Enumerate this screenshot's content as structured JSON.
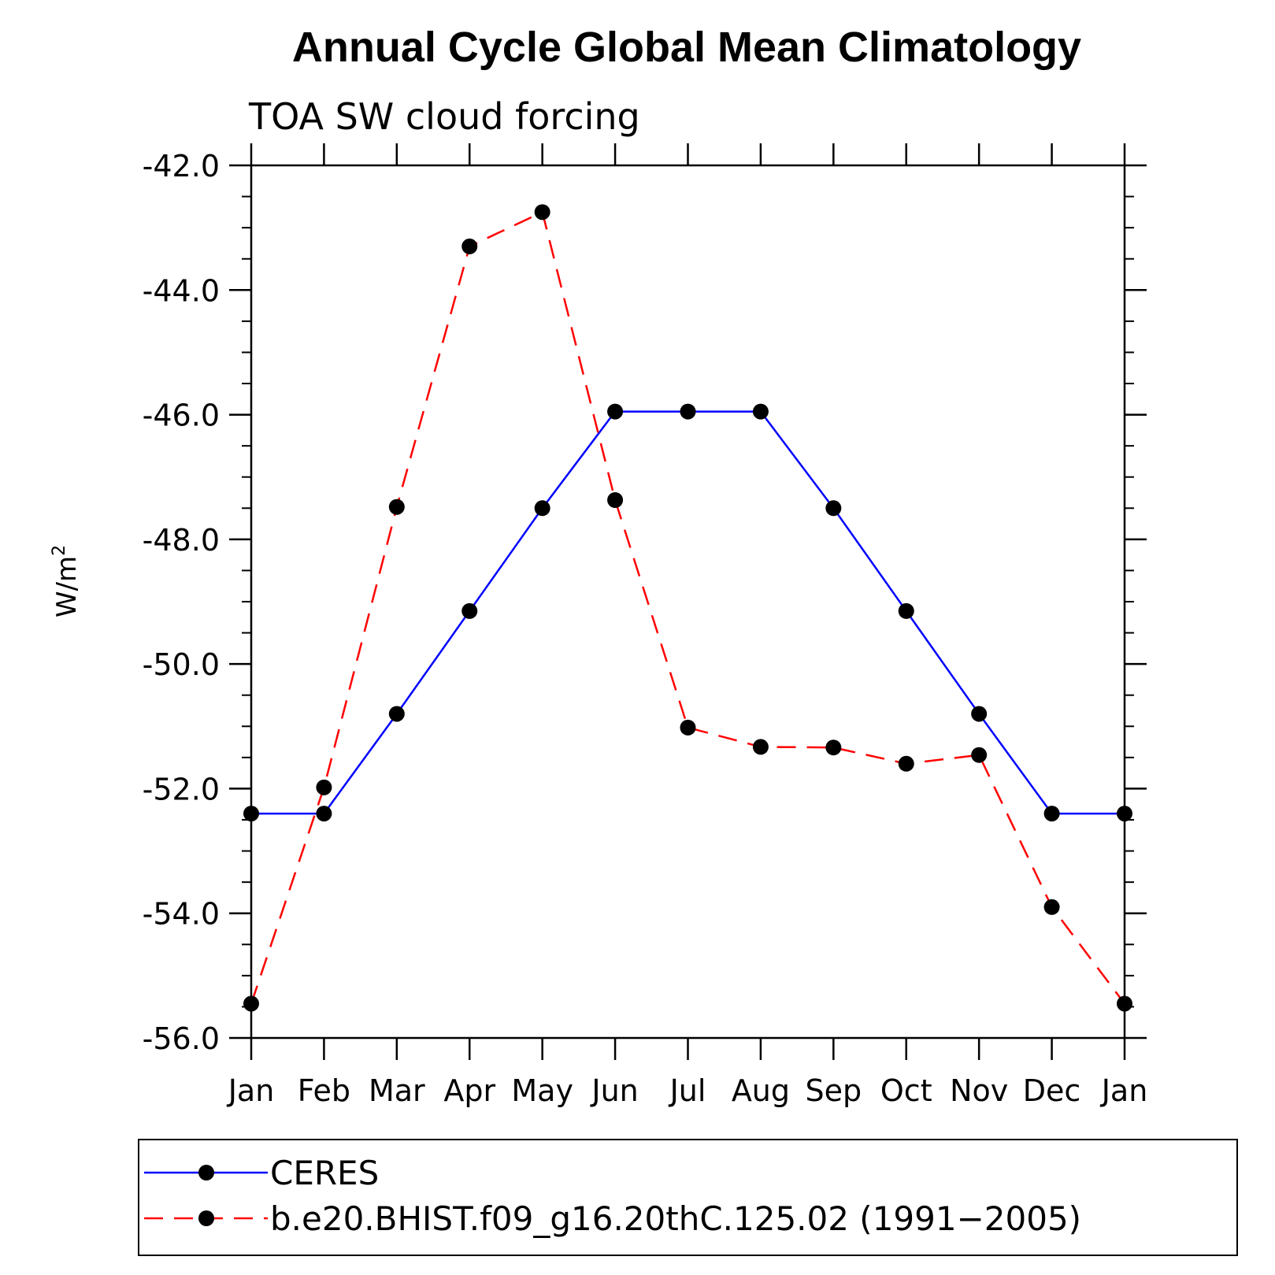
{
  "chart_data": {
    "type": "line",
    "title": "Annual Cycle Global Mean Climatology",
    "subtitle": "TOA SW cloud forcing",
    "ylabel": "W/m",
    "ylabel_superscript": "2",
    "categories": [
      "Jan",
      "Feb",
      "Mar",
      "Apr",
      "May",
      "Jun",
      "Jul",
      "Aug",
      "Sep",
      "Oct",
      "Nov",
      "Dec",
      "Jan"
    ],
    "ylim": [
      -56.0,
      -42.0
    ],
    "yticks": [
      "-42.0",
      "-44.0",
      "-46.0",
      "-48.0",
      "-50.0",
      "-52.0",
      "-54.0",
      "-56.0"
    ],
    "yticks_values": [
      -42,
      -44,
      -46,
      -48,
      -50,
      -52,
      -54,
      -56
    ],
    "grid": false,
    "legend_position": "bottom",
    "series": [
      {
        "name": "CERES",
        "color": "#0000ff",
        "style": "solid",
        "values": [
          -52.4,
          -52.4,
          -50.8,
          -49.15,
          -47.5,
          -45.95,
          -45.95,
          -45.95,
          -47.5,
          -49.15,
          -50.8,
          -52.4,
          -52.4
        ]
      },
      {
        "name": "b.e20.BHIST.f09_g16.20thC.125.02 (1991−2005)",
        "color": "#ff0000",
        "style": "dashed",
        "values": [
          -55.45,
          -51.98,
          -47.48,
          -43.3,
          -42.75,
          -47.37,
          -51.02,
          -51.33,
          -51.34,
          -51.6,
          -51.46,
          -53.9,
          -55.45
        ]
      }
    ]
  }
}
